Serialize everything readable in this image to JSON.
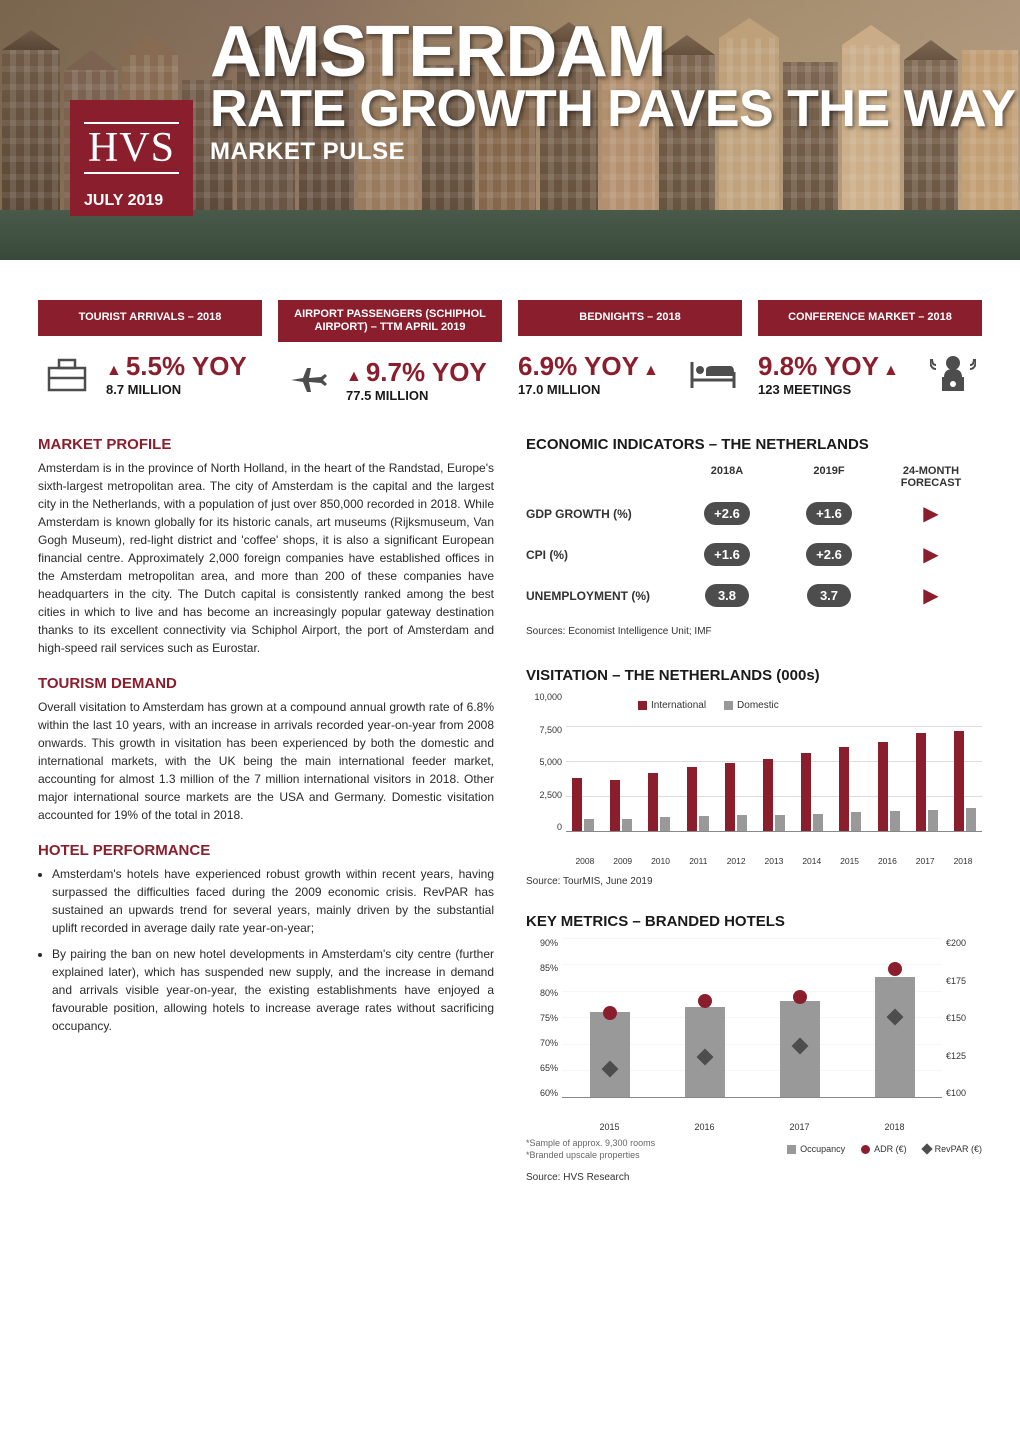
{
  "hero": {
    "title": "AMSTERDAM",
    "subtitle": "RATE GROWTH PAVES THE WAY",
    "label": "MARKET PULSE",
    "logo": "HVS",
    "date": "JULY 2019"
  },
  "colors": {
    "brand": "#8b1e2d",
    "dark_gray": "#4d4d4d",
    "mid_gray": "#999999",
    "text": "#2a2a2a"
  },
  "stats": [
    {
      "header": "TOURIST ARRIVALS – 2018",
      "yoy": "5.5% YOY",
      "sub": "8.7 MILLION",
      "icon": "briefcase",
      "icon_position": "left"
    },
    {
      "header": "AIRPORT PASSENGERS (SCHIPHOL AIRPORT) – TTM APRIL 2019",
      "yoy": "9.7% YOY",
      "sub": "77.5 MILLION",
      "icon": "plane",
      "icon_position": "left"
    },
    {
      "header": "BEDNIGHTS – 2018",
      "yoy": "6.9% YOY",
      "sub": "17.0 MILLION",
      "icon": "bed",
      "icon_position": "right"
    },
    {
      "header": "CONFERENCE MARKET – 2018",
      "yoy": "9.8% YOY",
      "sub": "123 MEETINGS",
      "icon": "speaker",
      "icon_position": "right"
    }
  ],
  "market_profile": {
    "title": "MARKET PROFILE",
    "text": "Amsterdam is in the province of North Holland, in the heart of the Randstad, Europe's sixth-largest metropolitan area. The city of Amsterdam is the capital and the largest city in the Netherlands, with a population of just over 850,000 recorded in 2018. While Amsterdam is known globally for its historic canals, art museums (Rijksmuseum, Van Gogh Museum), red-light district and 'coffee' shops, it is also a significant European financial centre. Approximately 2,000 foreign companies have established offices in the Amsterdam metropolitan area, and more than 200 of these companies have headquarters in the city. The Dutch capital is consistently ranked among the best cities in which to live and has become an increasingly popular gateway destination thanks to its excellent connectivity via Schiphol Airport, the port of Amsterdam and high-speed rail services such as Eurostar."
  },
  "tourism": {
    "title": "TOURISM DEMAND",
    "text": "Overall visitation to Amsterdam has grown at a compound annual growth rate of 6.8% within the last 10 years, with an increase in arrivals recorded year-on-year from 2008 onwards. This growth in visitation has been experienced by both the domestic and international markets, with the UK being the main international feeder market, accounting for almost 1.3 million of the 7 million international visitors in 2018. Other major international source markets are the USA and Germany. Domestic visitation accounted for 19% of the total in 2018."
  },
  "hotel_perf": {
    "title": "HOTEL PERFORMANCE",
    "items": [
      "Amsterdam's hotels have experienced robust growth within recent years, having surpassed the difficulties faced during the 2009 economic crisis. RevPAR has sustained an upwards trend for several years, mainly driven by the substantial uplift recorded in average daily rate year-on-year;",
      "By pairing the ban on new hotel developments in Amsterdam's city centre (further explained later), which has suspended new supply, and the increase in demand and arrivals visible year-on-year, the existing establishments have enjoyed a favourable position, allowing hotels to increase average rates without sacrificing occupancy."
    ]
  },
  "econ": {
    "title": "ECONOMIC INDICATORS – THE NETHERLANDS",
    "columns": [
      "2018A",
      "2019F",
      "24-MONTH FORECAST"
    ],
    "rows": [
      {
        "label": "GDP GROWTH (%)",
        "a": "+2.6",
        "f": "+1.6"
      },
      {
        "label": "CPI (%)",
        "a": "+1.6",
        "f": "+2.6"
      },
      {
        "label": "UNEMPLOYMENT (%)",
        "a": "3.8",
        "f": "3.7"
      }
    ],
    "source": "Sources: Economist Intelligence Unit; IMF"
  },
  "visitation": {
    "title": "VISITATION – THE NETHERLANDS (000s)",
    "y_ticks": [
      "10,000",
      "7,500",
      "5,000",
      "2,500",
      "0"
    ],
    "y_max": 10000,
    "years": [
      "2008",
      "2009",
      "2010",
      "2011",
      "2012",
      "2013",
      "2014",
      "2015",
      "2016",
      "2017",
      "2018"
    ],
    "series": {
      "International": {
        "color": "#8b1e2d",
        "values": [
          3800,
          3700,
          4200,
          4600,
          4900,
          5200,
          5600,
          6000,
          6400,
          7000,
          7200
        ]
      },
      "Domestic": {
        "color": "#999999",
        "values": [
          900,
          900,
          1000,
          1100,
          1150,
          1200,
          1250,
          1350,
          1450,
          1550,
          1650
        ]
      }
    },
    "source": "Source: TourMIS, June 2019"
  },
  "metrics": {
    "title": "KEY METRICS – BRANDED HOTELS",
    "years": [
      "2015",
      "2016",
      "2017",
      "2018"
    ],
    "y_left_ticks": [
      "90%",
      "85%",
      "80%",
      "75%",
      "70%",
      "65%",
      "60%"
    ],
    "y_left_min": 60,
    "y_left_max": 90,
    "y_right_ticks": [
      "€200",
      "€175",
      "€150",
      "€125",
      "€100"
    ],
    "y_right_min": 100,
    "y_right_max": 200,
    "occupancy": {
      "color": "#999999",
      "values": [
        76,
        77,
        78,
        82.5
      ]
    },
    "adr": {
      "color": "#8b1e2d",
      "values": [
        153,
        160,
        163,
        180
      ]
    },
    "revpar": {
      "color": "#4d4d4d",
      "values": [
        118,
        125,
        132,
        150
      ]
    },
    "legend": [
      "Occupancy",
      "ADR (€)",
      "RevPAR (€)"
    ],
    "footnote1": "*Sample of approx. 9,300 rooms",
    "footnote2": "*Branded upscale properties",
    "source": "Source: HVS Research"
  }
}
